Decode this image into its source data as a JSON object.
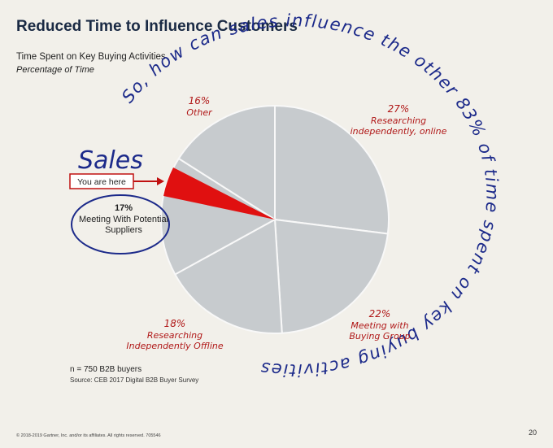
{
  "chart_data": {
    "type": "pie",
    "title": "Reduced Time to Influence Customers",
    "subtitle": "Time Spent on Key Buying Activities",
    "subtitle2": "Percentage of Time",
    "categories": [
      "Researching independently, online",
      "Meeting with Buying Group",
      "Researching Independently Offline",
      "Meeting With Potential Suppliers",
      "Other"
    ],
    "values": [
      27,
      22,
      18,
      17,
      16
    ],
    "value_labels": [
      "27%",
      "22%",
      "18%",
      "17%",
      "16%"
    ],
    "color": "#c7cbce",
    "label_colors": [
      "#b01818",
      "#b01818",
      "#b01818",
      "#222222",
      "#b01818"
    ],
    "callout": "You are here",
    "handwritten_label": "Sales",
    "handwritten_question": "So, how can sales influence the other 83% of time spent on key buying activities",
    "note": "n = 750 B2B buyers",
    "source": "Source: CEB 2017 Digital B2B Buyer Survey",
    "footer": "© 2018-2019 Gartner, Inc. and/or its affiliates. All rights reserved. 705546",
    "page_number": "20"
  }
}
